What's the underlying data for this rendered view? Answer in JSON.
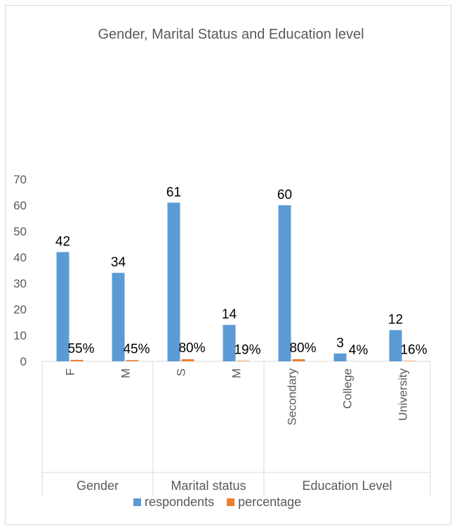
{
  "chart_data": {
    "type": "bar",
    "title": "Gender, Marital Status and Education level",
    "xlabel": "",
    "ylabel": "",
    "ylim": [
      0,
      70
    ],
    "yticks": [
      "0",
      "10",
      "20",
      "30",
      "40",
      "50",
      "60",
      "70"
    ],
    "grid": false,
    "legend_position": "bottom",
    "groups": [
      {
        "name": "Gender",
        "count": 2
      },
      {
        "name": "Marital status",
        "count": 2
      },
      {
        "name": "Education Level",
        "count": 3
      }
    ],
    "categories": [
      "F",
      "M",
      "S",
      "M",
      "Secondary",
      "College",
      "University"
    ],
    "series": [
      {
        "name": "respondents",
        "color": "#5b9bd5",
        "values": [
          42,
          34,
          61,
          14,
          60,
          3,
          12
        ],
        "labels": [
          "42",
          "34",
          "61",
          "14",
          "60",
          "3",
          "12"
        ]
      },
      {
        "name": "percentage",
        "color": "#ed7d31",
        "values": [
          0.55,
          0.45,
          0.8,
          0.19,
          0.8,
          0.04,
          0.16
        ],
        "labels": [
          "55%",
          "45%",
          "80%",
          "19%",
          "80%",
          "4%",
          "16%"
        ]
      }
    ]
  }
}
